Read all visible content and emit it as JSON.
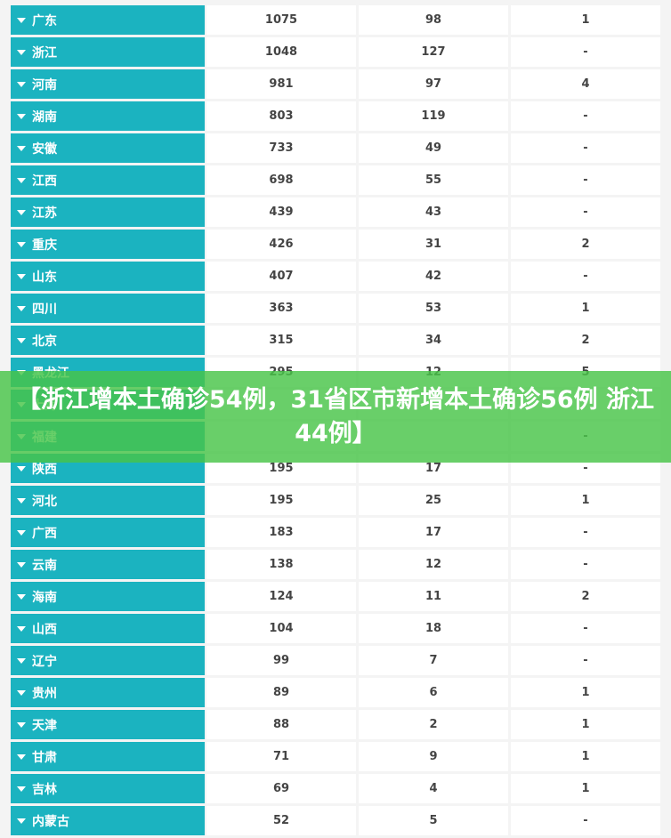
{
  "headline": "【浙江增本土确诊54例，31省区市新增本土确诊56例 浙江44例】",
  "colors": {
    "province_bg": "#1bb3c0",
    "cell_bg": "#ffffff",
    "overlay_bg": "#48c448"
  },
  "rows": [
    {
      "province": "广东",
      "v1": "1075",
      "v2": "98",
      "v3": "1"
    },
    {
      "province": "浙江",
      "v1": "1048",
      "v2": "127",
      "v3": "-"
    },
    {
      "province": "河南",
      "v1": "981",
      "v2": "97",
      "v3": "4"
    },
    {
      "province": "湖南",
      "v1": "803",
      "v2": "119",
      "v3": "-"
    },
    {
      "province": "安徽",
      "v1": "733",
      "v2": "49",
      "v3": "-"
    },
    {
      "province": "江西",
      "v1": "698",
      "v2": "55",
      "v3": "-"
    },
    {
      "province": "江苏",
      "v1": "439",
      "v2": "43",
      "v3": "-"
    },
    {
      "province": "重庆",
      "v1": "426",
      "v2": "31",
      "v3": "2"
    },
    {
      "province": "山东",
      "v1": "407",
      "v2": "42",
      "v3": "-"
    },
    {
      "province": "四川",
      "v1": "363",
      "v2": "53",
      "v3": "1"
    },
    {
      "province": "北京",
      "v1": "315",
      "v2": "34",
      "v3": "2"
    },
    {
      "province": "黑龙江",
      "v1": "295",
      "v2": "12",
      "v3": "5"
    },
    {
      "province": "上海",
      "v1": "",
      "v2": "",
      "v3": ""
    },
    {
      "province": "福建",
      "v1": "",
      "v2": "",
      "v3": "-"
    },
    {
      "province": "陕西",
      "v1": "195",
      "v2": "17",
      "v3": "-"
    },
    {
      "province": "河北",
      "v1": "195",
      "v2": "25",
      "v3": "1"
    },
    {
      "province": "广西",
      "v1": "183",
      "v2": "17",
      "v3": "-"
    },
    {
      "province": "云南",
      "v1": "138",
      "v2": "12",
      "v3": "-"
    },
    {
      "province": "海南",
      "v1": "124",
      "v2": "11",
      "v3": "2"
    },
    {
      "province": "山西",
      "v1": "104",
      "v2": "18",
      "v3": "-"
    },
    {
      "province": "辽宁",
      "v1": "99",
      "v2": "7",
      "v3": "-"
    },
    {
      "province": "贵州",
      "v1": "89",
      "v2": "6",
      "v3": "1"
    },
    {
      "province": "天津",
      "v1": "88",
      "v2": "2",
      "v3": "1"
    },
    {
      "province": "甘肃",
      "v1": "71",
      "v2": "9",
      "v3": "1"
    },
    {
      "province": "吉林",
      "v1": "69",
      "v2": "4",
      "v3": "1"
    },
    {
      "province": "内蒙古",
      "v1": "52",
      "v2": "5",
      "v3": "-"
    }
  ]
}
